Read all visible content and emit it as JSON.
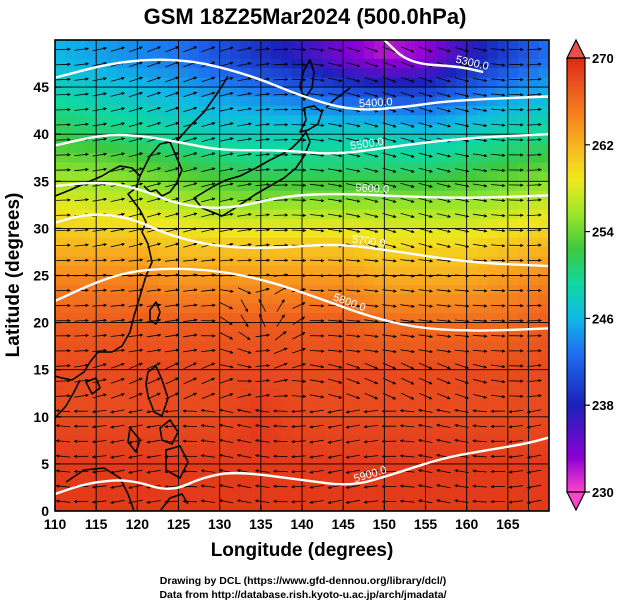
{
  "chart_data": {
    "type": "heatmap",
    "title": "GSM 18Z25Mar2024 (500.0hPa)",
    "xlabel": "Longitude (degrees)",
    "ylabel": "Latitude  (degrees)",
    "xlim": [
      110,
      170
    ],
    "ylim": [
      0,
      50
    ],
    "x_ticks": [
      110,
      115,
      120,
      125,
      130,
      135,
      140,
      145,
      150,
      155,
      160,
      165
    ],
    "y_ticks": [
      0,
      5,
      10,
      15,
      20,
      25,
      30,
      35,
      40,
      45
    ],
    "grid": true,
    "colorbar": {
      "ticks": [
        270,
        262,
        254,
        246,
        238,
        230
      ],
      "range": [
        230,
        270
      ],
      "colors": [
        "#ff44cc",
        "#8a00d4",
        "#1a22b8",
        "#1e6ff0",
        "#10b8e6",
        "#10d8a0",
        "#3ec83e",
        "#9ce62a",
        "#f0e81e",
        "#f8b420",
        "#f47a1e",
        "#e6441e",
        "#de2814"
      ]
    },
    "temperature_field": [
      {
        "lat": 48,
        "values": [
          246,
          245,
          244,
          243,
          241,
          239,
          237,
          234,
          232,
          233,
          237,
          240,
          243
        ]
      },
      {
        "lat": 44,
        "values": [
          249,
          248,
          247,
          246,
          245,
          244,
          243,
          242,
          241,
          241,
          243,
          245,
          246
        ]
      },
      {
        "lat": 40,
        "values": [
          252,
          251,
          250,
          249,
          248,
          248,
          248,
          248,
          248,
          247,
          248,
          249,
          250
        ]
      },
      {
        "lat": 36,
        "values": [
          255,
          255,
          254,
          253,
          252,
          251,
          251,
          251,
          251,
          251,
          252,
          253,
          254
        ]
      },
      {
        "lat": 32,
        "values": [
          259,
          258,
          258,
          257,
          256,
          256,
          256,
          256,
          256,
          256,
          256,
          257,
          258
        ]
      },
      {
        "lat": 28,
        "values": [
          262,
          262,
          262,
          261,
          261,
          261,
          261,
          261,
          260,
          260,
          260,
          261,
          262
        ]
      },
      {
        "lat": 24,
        "values": [
          265,
          265,
          265,
          264,
          264,
          264,
          264,
          264,
          263,
          263,
          263,
          264,
          265
        ]
      },
      {
        "lat": 20,
        "values": [
          267,
          267,
          267,
          267,
          267,
          267,
          267,
          267,
          266,
          266,
          266,
          266,
          267
        ]
      },
      {
        "lat": 15,
        "values": [
          268,
          268,
          268,
          268,
          268,
          268,
          268,
          268,
          268,
          268,
          268,
          268,
          268
        ]
      },
      {
        "lat": 10,
        "values": [
          268,
          268,
          268,
          268,
          268,
          269,
          268,
          268,
          268,
          268,
          268,
          268,
          268
        ]
      },
      {
        "lat": 5,
        "values": [
          269,
          269,
          269,
          269,
          269,
          269,
          269,
          269,
          269,
          269,
          269,
          269,
          269
        ]
      },
      {
        "lat": 0,
        "values": [
          269,
          269,
          269,
          269,
          269,
          269,
          269,
          269,
          269,
          269,
          269,
          269,
          269
        ]
      }
    ],
    "contours": [
      {
        "label": "5300.0",
        "points": [
          [
            150,
            50
          ],
          [
            153,
            47.5
          ],
          [
            159,
            47.2
          ],
          [
            162,
            46.6
          ]
        ]
      },
      {
        "label": "5400.0",
        "points": [
          [
            110,
            46
          ],
          [
            118,
            47.8
          ],
          [
            126,
            48
          ],
          [
            134,
            46.2
          ],
          [
            140,
            44
          ],
          [
            146,
            42.5
          ],
          [
            152,
            42.8
          ],
          [
            158,
            43.6
          ],
          [
            170,
            44
          ]
        ]
      },
      {
        "label": "5500.0",
        "points": [
          [
            110,
            38.8
          ],
          [
            116,
            40
          ],
          [
            121,
            39.8
          ],
          [
            126,
            39
          ],
          [
            130,
            38.3
          ],
          [
            138,
            38.3
          ],
          [
            144,
            37.8
          ],
          [
            152,
            38.8
          ],
          [
            160,
            39.6
          ],
          [
            170,
            40
          ]
        ]
      },
      {
        "label": "5600.0",
        "points": [
          [
            110,
            34.5
          ],
          [
            116,
            35
          ],
          [
            121,
            34
          ],
          [
            125,
            32.5
          ],
          [
            131,
            32
          ],
          [
            138,
            33.5
          ],
          [
            145,
            33.7
          ],
          [
            152,
            33.4
          ],
          [
            160,
            33.2
          ],
          [
            170,
            33.5
          ]
        ]
      },
      {
        "label": "5700.0",
        "points": [
          [
            110,
            30.6
          ],
          [
            114,
            31.6
          ],
          [
            119,
            31.2
          ],
          [
            124,
            29.2
          ],
          [
            130,
            28
          ],
          [
            137,
            27.9
          ],
          [
            144,
            28.4
          ],
          [
            152,
            27.5
          ],
          [
            160,
            26.4
          ],
          [
            170,
            26
          ]
        ]
      },
      {
        "label": "5800.0",
        "points": [
          [
            110,
            22.3
          ],
          [
            115,
            24.3
          ],
          [
            119,
            25.4
          ],
          [
            124,
            25.8
          ],
          [
            130,
            25.5
          ],
          [
            136,
            24.4
          ],
          [
            142,
            22.6
          ],
          [
            149,
            20.4
          ],
          [
            155,
            19.3
          ],
          [
            162,
            19.1
          ],
          [
            170,
            19.4
          ]
        ]
      },
      {
        "label": "5900.0",
        "points": [
          [
            110,
            1.8
          ],
          [
            114,
            3
          ],
          [
            119,
            3.4
          ],
          [
            124,
            2
          ],
          [
            128,
            3.6
          ],
          [
            132,
            4.2
          ],
          [
            140,
            3.3
          ],
          [
            146,
            2.6
          ],
          [
            151,
            3.9
          ],
          [
            157,
            5.6
          ],
          [
            162,
            6.4
          ],
          [
            167,
            7.1
          ],
          [
            170,
            7.8
          ]
        ]
      }
    ],
    "vortex_center": [
      135,
      19.5
    ]
  },
  "credits": [
    "Drawing by DCL (https://www.gfd-dennou.org/library/dcl/)",
    "Data from http://database.rish.kyoto-u.ac.jp/arch/jmadata/"
  ]
}
